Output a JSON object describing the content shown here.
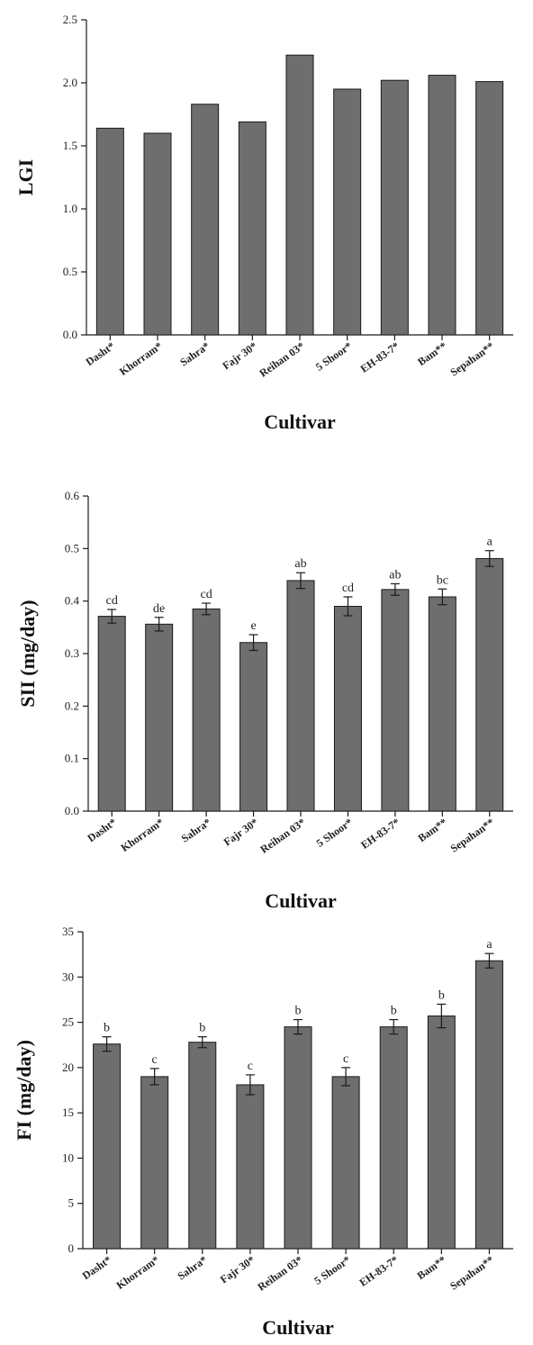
{
  "chart_data": [
    {
      "type": "bar",
      "xlabel": "Cultivar",
      "ylabel": "LGI",
      "ylim": [
        0,
        2.5
      ],
      "yticks": [
        "0.0",
        "0.5",
        "1.0",
        "1.5",
        "2.0",
        "2.5"
      ],
      "categories": [
        "Dasht*",
        "Khorram*",
        "Sahra*",
        "Fajr 30*",
        "Reihan 03*",
        "5 Shoor*",
        "EH-83-7*",
        "Bam**",
        "Sepahan**"
      ],
      "values": [
        1.64,
        1.6,
        1.83,
        1.69,
        2.22,
        1.95,
        2.02,
        2.06,
        2.01
      ]
    },
    {
      "type": "bar",
      "xlabel": "Cultivar",
      "ylabel": "SII (mg/day)",
      "ylim": [
        0,
        0.6
      ],
      "yticks": [
        "0.0",
        "0.1",
        "0.2",
        "0.3",
        "0.4",
        "0.5",
        "0.6"
      ],
      "categories": [
        "Dasht*",
        "Khorram*",
        "Sahra*",
        "Fajr 30*",
        "Reihan 03*",
        "5 Shoor*",
        "EH-83-7*",
        "Bam**",
        "Sepahan**"
      ],
      "values": [
        0.371,
        0.356,
        0.385,
        0.321,
        0.439,
        0.39,
        0.422,
        0.408,
        0.481
      ],
      "errors": [
        0.013,
        0.013,
        0.011,
        0.015,
        0.015,
        0.018,
        0.011,
        0.015,
        0.015
      ],
      "labels": [
        "cd",
        "de",
        "cd",
        "e",
        "ab",
        "cd",
        "ab",
        "bc",
        "a"
      ]
    },
    {
      "type": "bar",
      "xlabel": "Cultivar",
      "ylabel": "FI (mg/day)",
      "ylim": [
        0,
        35
      ],
      "yticks": [
        "0",
        "5",
        "10",
        "15",
        "20",
        "25",
        "30",
        "35"
      ],
      "categories": [
        "Dasht*",
        "Khorram*",
        "Sahra*",
        "Fajr 30*",
        "Reihan 03*",
        "5 Shoor*",
        "EH-83-7*",
        "Bam**",
        "Sepahan**"
      ],
      "values": [
        22.6,
        19.0,
        22.8,
        18.1,
        24.5,
        19.0,
        24.5,
        25.7,
        31.8
      ],
      "errors": [
        0.8,
        0.9,
        0.6,
        1.1,
        0.8,
        1.0,
        0.8,
        1.3,
        0.8
      ],
      "labels": [
        "b",
        "c",
        "b",
        "c",
        "b",
        "c",
        "b",
        "b",
        "a"
      ]
    }
  ]
}
